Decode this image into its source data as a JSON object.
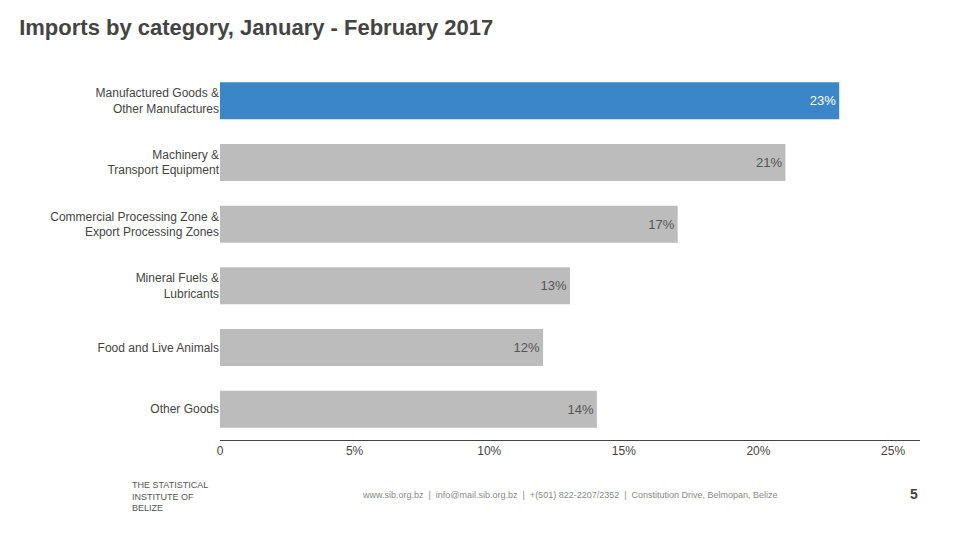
{
  "chart_data": {
    "type": "bar",
    "orientation": "horizontal",
    "title": "Imports by category, January - February 2017",
    "categories": [
      "Manufactured Goods &\nOther Manufactures",
      "Machinery &\nTransport Equipment",
      "Commercial Processing Zone &\nExport Processing Zones",
      "Mineral Fuels &\nLubricants",
      "Food and Live Animals",
      "Other Goods"
    ],
    "values": [
      23,
      21,
      17,
      13,
      12,
      14
    ],
    "value_labels": [
      "23%",
      "21%",
      "17%",
      "13%",
      "12%",
      "14%"
    ],
    "data_labels": true,
    "colors": [
      "#3A86C8",
      "#BCBCBC",
      "#BCBCBC",
      "#BCBCBC",
      "#BCBCBC",
      "#BCBCBC"
    ],
    "xlim": [
      0,
      26
    ],
    "xticks": [
      0,
      {
        "value": 5,
        "label": "5%"
      },
      {
        "value": 10,
        "label": "10%"
      },
      {
        "value": 15,
        "label": "15%"
      },
      {
        "value": 20,
        "label": "20%"
      },
      {
        "value": 25,
        "label": "25%"
      }
    ],
    "grid": false,
    "annotations": [
      "THE STATISTICAL\nINSTITUTE OF\nBELIZE",
      "www.sib.org.bz  |  info@mail.sib.org.bz  |  +(501) 822-2207/2352  |  Constitution Drive, Belmopan, Belize",
      "5"
    ]
  }
}
